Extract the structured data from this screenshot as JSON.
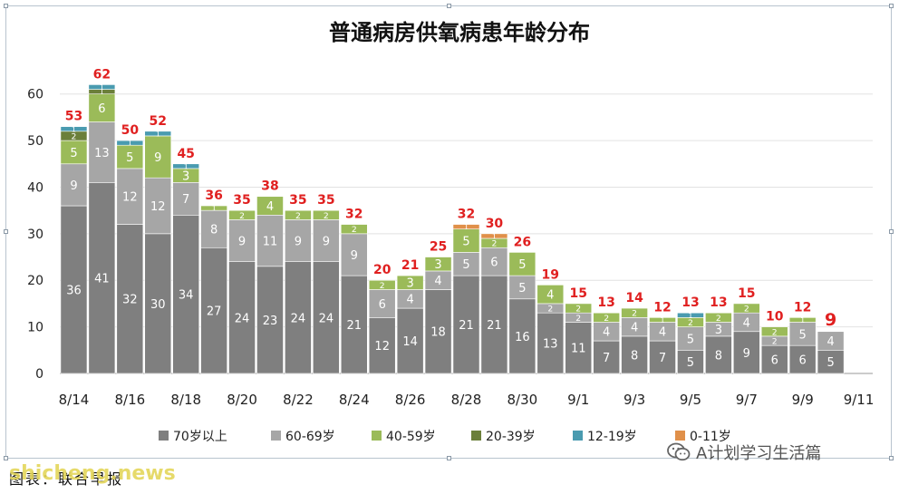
{
  "chart_data": {
    "type": "bar",
    "stacked": true,
    "title": "普通病房供氧病患年龄分布",
    "ylim": [
      0,
      65
    ],
    "y_ticks": [
      0,
      10,
      20,
      30,
      40,
      50,
      60
    ],
    "grid": true,
    "legend_position": "bottom",
    "x_tick_labels": [
      "8/14",
      "8/16",
      "8/18",
      "8/20",
      "8/22",
      "8/24",
      "8/26",
      "8/28",
      "8/30",
      "9/1",
      "9/3",
      "9/5",
      "9/7",
      "9/9",
      "9/11"
    ],
    "categories": [
      "8/14",
      "8/15",
      "8/16",
      "8/17",
      "8/18",
      "8/19",
      "8/20",
      "8/21",
      "8/22",
      "8/23",
      "8/24",
      "8/25",
      "8/26",
      "8/27",
      "8/28",
      "8/29",
      "8/30",
      "8/31",
      "9/1",
      "9/2",
      "9/3",
      "9/4",
      "9/5",
      "9/6",
      "9/7",
      "9/8",
      "9/9",
      "9/10"
    ],
    "series": [
      {
        "name": "70岁以上",
        "color": "#7f7f7f",
        "values": [
          36,
          41,
          32,
          30,
          34,
          27,
          24,
          23,
          24,
          24,
          21,
          12,
          14,
          18,
          21,
          21,
          16,
          13,
          11,
          7,
          8,
          7,
          5,
          8,
          9,
          6,
          6,
          5
        ]
      },
      {
        "name": "60-69岁",
        "color": "#a6a6a6",
        "values": [
          9,
          13,
          12,
          12,
          7,
          8,
          9,
          11,
          9,
          9,
          9,
          6,
          4,
          4,
          5,
          6,
          5,
          2,
          2,
          4,
          4,
          4,
          5,
          3,
          4,
          2,
          5,
          4
        ]
      },
      {
        "name": "40-59岁",
        "color": "#9bbb59",
        "values": [
          5,
          6,
          5,
          9,
          3,
          1,
          2,
          4,
          2,
          2,
          2,
          2,
          3,
          3,
          5,
          2,
          5,
          4,
          2,
          2,
          2,
          1,
          2,
          2,
          2,
          2,
          1,
          0
        ]
      },
      {
        "name": "20-39岁",
        "color": "#6b7f3a",
        "values": [
          2,
          1,
          0,
          0,
          0,
          0,
          0,
          0,
          0,
          0,
          0,
          0,
          0,
          0,
          0,
          0,
          0,
          0,
          0,
          0,
          0,
          0,
          0,
          0,
          0,
          0,
          0,
          0
        ]
      },
      {
        "name": "12-19岁",
        "color": "#4a9bb0",
        "values": [
          1,
          1,
          1,
          1,
          1,
          0,
          0,
          0,
          0,
          0,
          0,
          0,
          0,
          0,
          0,
          0,
          0,
          0,
          0,
          0,
          0,
          0,
          1,
          0,
          0,
          0,
          0,
          0
        ]
      },
      {
        "name": "0-11岁",
        "color": "#e0904a",
        "values": [
          0,
          0,
          0,
          0,
          0,
          0,
          0,
          0,
          0,
          0,
          0,
          0,
          0,
          0,
          1,
          1,
          0,
          0,
          0,
          0,
          0,
          0,
          0,
          0,
          0,
          0,
          0,
          0
        ]
      }
    ],
    "totals": [
      53,
      62,
      50,
      52,
      45,
      36,
      35,
      38,
      35,
      35,
      32,
      20,
      21,
      25,
      32,
      30,
      26,
      19,
      15,
      13,
      14,
      12,
      13,
      13,
      15,
      10,
      12,
      9
    ],
    "total_label_color": "#e02020",
    "segment_label_color": "#ffffff"
  },
  "caption": "图表：联合早报",
  "watermark_site": "shicheng.news",
  "watermark_account": "A计划学习生活篇"
}
